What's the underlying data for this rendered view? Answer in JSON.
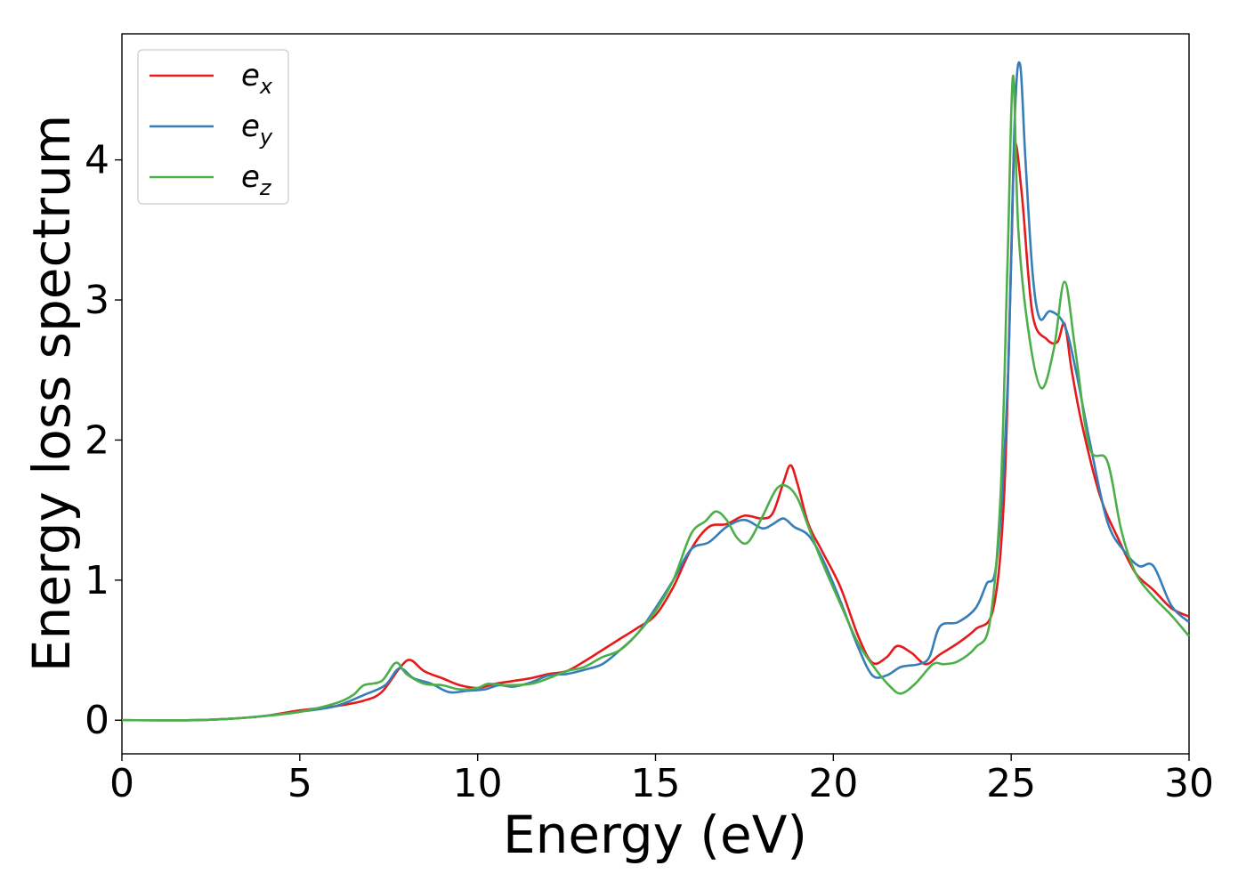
{
  "chart_data": {
    "type": "line",
    "xlabel": "Energy (eV)",
    "ylabel": "Energy loss spectrum",
    "xlim": [
      0,
      30
    ],
    "ylim": [
      -0.24,
      4.9
    ],
    "xticks": [
      0,
      5,
      10,
      15,
      20,
      25,
      30
    ],
    "yticks": [
      0,
      1,
      2,
      3,
      4
    ],
    "grid": false,
    "legend_position": "top-left",
    "series": [
      {
        "name": "e_x",
        "label_base": "e",
        "label_sub": "x",
        "color": "#e41a1c",
        "points": [
          [
            0,
            0
          ],
          [
            2,
            0
          ],
          [
            3,
            0.01
          ],
          [
            4,
            0.03
          ],
          [
            5,
            0.07
          ],
          [
            6,
            0.1
          ],
          [
            6.8,
            0.14
          ],
          [
            7.3,
            0.2
          ],
          [
            7.8,
            0.37
          ],
          [
            8.1,
            0.43
          ],
          [
            8.5,
            0.35
          ],
          [
            9,
            0.3
          ],
          [
            9.5,
            0.25
          ],
          [
            10,
            0.23
          ],
          [
            10.5,
            0.26
          ],
          [
            11,
            0.28
          ],
          [
            11.5,
            0.3
          ],
          [
            12,
            0.33
          ],
          [
            12.5,
            0.35
          ],
          [
            13,
            0.42
          ],
          [
            13.5,
            0.5
          ],
          [
            14,
            0.58
          ],
          [
            14.5,
            0.66
          ],
          [
            15,
            0.75
          ],
          [
            15.5,
            0.95
          ],
          [
            16,
            1.22
          ],
          [
            16.5,
            1.38
          ],
          [
            17,
            1.4
          ],
          [
            17.5,
            1.46
          ],
          [
            18,
            1.44
          ],
          [
            18.3,
            1.48
          ],
          [
            18.6,
            1.7
          ],
          [
            18.8,
            1.82
          ],
          [
            19,
            1.68
          ],
          [
            19.3,
            1.4
          ],
          [
            19.7,
            1.2
          ],
          [
            20.2,
            0.95
          ],
          [
            20.7,
            0.6
          ],
          [
            21.1,
            0.41
          ],
          [
            21.5,
            0.45
          ],
          [
            21.8,
            0.53
          ],
          [
            22.2,
            0.48
          ],
          [
            22.6,
            0.4
          ],
          [
            23,
            0.47
          ],
          [
            23.5,
            0.55
          ],
          [
            24,
            0.65
          ],
          [
            24.5,
            0.8
          ],
          [
            24.8,
            1.6
          ],
          [
            25,
            3.3
          ],
          [
            25.1,
            4.1
          ],
          [
            25.3,
            3.75
          ],
          [
            25.6,
            2.9
          ],
          [
            26,
            2.72
          ],
          [
            26.3,
            2.7
          ],
          [
            26.5,
            2.83
          ],
          [
            26.7,
            2.5
          ],
          [
            27,
            2.1
          ],
          [
            27.5,
            1.6
          ],
          [
            28,
            1.3
          ],
          [
            28.5,
            1.05
          ],
          [
            29,
            0.93
          ],
          [
            29.5,
            0.8
          ],
          [
            30,
            0.74
          ]
        ]
      },
      {
        "name": "e_y",
        "label_base": "e",
        "label_sub": "y",
        "color": "#377eb8",
        "points": [
          [
            0,
            0
          ],
          [
            2,
            0
          ],
          [
            3,
            0.01
          ],
          [
            4,
            0.03
          ],
          [
            5,
            0.06
          ],
          [
            6,
            0.1
          ],
          [
            6.8,
            0.18
          ],
          [
            7.4,
            0.25
          ],
          [
            7.8,
            0.37
          ],
          [
            8.2,
            0.3
          ],
          [
            8.7,
            0.26
          ],
          [
            9.2,
            0.2
          ],
          [
            9.7,
            0.21
          ],
          [
            10.2,
            0.22
          ],
          [
            10.6,
            0.25
          ],
          [
            11,
            0.24
          ],
          [
            11.5,
            0.27
          ],
          [
            12,
            0.32
          ],
          [
            12.5,
            0.33
          ],
          [
            13,
            0.36
          ],
          [
            13.5,
            0.4
          ],
          [
            14,
            0.5
          ],
          [
            14.5,
            0.62
          ],
          [
            15,
            0.8
          ],
          [
            15.5,
            1.0
          ],
          [
            16,
            1.22
          ],
          [
            16.5,
            1.27
          ],
          [
            17,
            1.38
          ],
          [
            17.5,
            1.43
          ],
          [
            18,
            1.37
          ],
          [
            18.3,
            1.4
          ],
          [
            18.6,
            1.44
          ],
          [
            18.9,
            1.38
          ],
          [
            19.3,
            1.32
          ],
          [
            19.7,
            1.15
          ],
          [
            20.2,
            0.85
          ],
          [
            20.7,
            0.52
          ],
          [
            21.1,
            0.32
          ],
          [
            21.5,
            0.32
          ],
          [
            21.9,
            0.38
          ],
          [
            22.4,
            0.4
          ],
          [
            22.7,
            0.45
          ],
          [
            23,
            0.67
          ],
          [
            23.5,
            0.7
          ],
          [
            24,
            0.8
          ],
          [
            24.3,
            0.97
          ],
          [
            24.6,
            1.15
          ],
          [
            24.9,
            2.4
          ],
          [
            25.1,
            4.3
          ],
          [
            25.25,
            4.68
          ],
          [
            25.4,
            4.0
          ],
          [
            25.6,
            3.2
          ],
          [
            25.8,
            2.87
          ],
          [
            26.1,
            2.92
          ],
          [
            26.5,
            2.82
          ],
          [
            26.8,
            2.52
          ],
          [
            27.2,
            2.0
          ],
          [
            27.7,
            1.42
          ],
          [
            28.2,
            1.2
          ],
          [
            28.6,
            1.1
          ],
          [
            29,
            1.1
          ],
          [
            29.5,
            0.82
          ],
          [
            30,
            0.7
          ]
        ]
      },
      {
        "name": "e_z",
        "label_base": "e",
        "label_sub": "z",
        "color": "#4daf4a",
        "points": [
          [
            0,
            0
          ],
          [
            2,
            0
          ],
          [
            3,
            0.01
          ],
          [
            4,
            0.03
          ],
          [
            5,
            0.06
          ],
          [
            6,
            0.12
          ],
          [
            6.5,
            0.18
          ],
          [
            6.8,
            0.25
          ],
          [
            7.3,
            0.28
          ],
          [
            7.7,
            0.41
          ],
          [
            8,
            0.33
          ],
          [
            8.5,
            0.26
          ],
          [
            9,
            0.25
          ],
          [
            9.5,
            0.22
          ],
          [
            10,
            0.23
          ],
          [
            10.3,
            0.26
          ],
          [
            10.8,
            0.25
          ],
          [
            11.5,
            0.26
          ],
          [
            12,
            0.3
          ],
          [
            12.5,
            0.35
          ],
          [
            13,
            0.38
          ],
          [
            13.5,
            0.45
          ],
          [
            14,
            0.5
          ],
          [
            14.5,
            0.62
          ],
          [
            15,
            0.78
          ],
          [
            15.5,
            1.0
          ],
          [
            16,
            1.33
          ],
          [
            16.4,
            1.42
          ],
          [
            16.7,
            1.49
          ],
          [
            17,
            1.43
          ],
          [
            17.3,
            1.3
          ],
          [
            17.6,
            1.27
          ],
          [
            18,
            1.45
          ],
          [
            18.4,
            1.65
          ],
          [
            18.7,
            1.67
          ],
          [
            19,
            1.58
          ],
          [
            19.3,
            1.38
          ],
          [
            19.7,
            1.12
          ],
          [
            20.2,
            0.83
          ],
          [
            20.7,
            0.55
          ],
          [
            21.2,
            0.36
          ],
          [
            21.6,
            0.24
          ],
          [
            21.9,
            0.19
          ],
          [
            22.3,
            0.26
          ],
          [
            22.8,
            0.4
          ],
          [
            23.1,
            0.4
          ],
          [
            23.5,
            0.42
          ],
          [
            24,
            0.52
          ],
          [
            24.4,
            0.7
          ],
          [
            24.7,
            1.6
          ],
          [
            24.9,
            3.3
          ],
          [
            25.05,
            4.6
          ],
          [
            25.2,
            3.5
          ],
          [
            25.5,
            2.75
          ],
          [
            25.85,
            2.37
          ],
          [
            26.2,
            2.65
          ],
          [
            26.5,
            3.13
          ],
          [
            26.8,
            2.65
          ],
          [
            27.2,
            1.95
          ],
          [
            27.7,
            1.85
          ],
          [
            28.1,
            1.35
          ],
          [
            28.5,
            1.05
          ],
          [
            29,
            0.88
          ],
          [
            29.5,
            0.75
          ],
          [
            30,
            0.6
          ]
        ]
      }
    ]
  }
}
